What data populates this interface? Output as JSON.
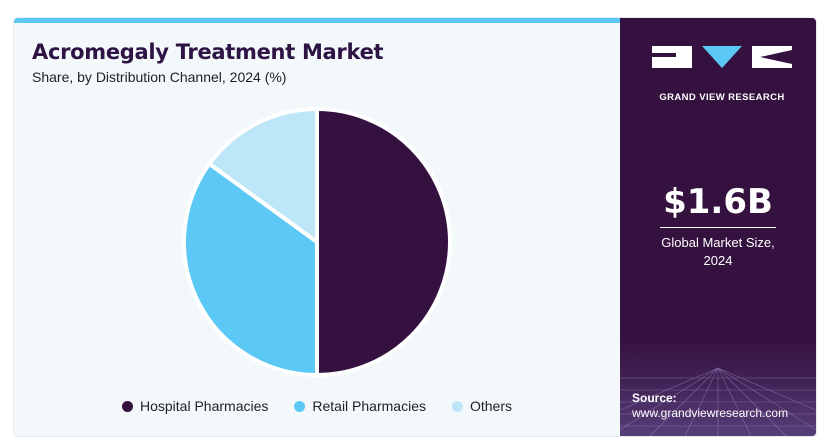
{
  "header": {
    "title": "Acromegaly Treatment Market",
    "subtitle": "Share, by Distribution Channel, 2024 (%)"
  },
  "chart_data": {
    "type": "pie",
    "title": "Acromegaly Treatment Market",
    "subtitle": "Share, by Distribution Channel, 2024 (%)",
    "categories": [
      "Hospital Pharmacies",
      "Retail Pharmacies",
      "Others"
    ],
    "values": [
      50,
      35,
      15
    ],
    "colors": [
      "#35113f",
      "#5bc8f5",
      "#bde7f8"
    ],
    "legend_position": "bottom"
  },
  "side_panel": {
    "brand": "GRAND VIEW RESEARCH",
    "market_size": "$1.6B",
    "market_size_label_line1": "Global Market Size,",
    "market_size_label_line2": "2024",
    "source_label": "Source:",
    "source_url": "www.grandviewresearch.com"
  }
}
